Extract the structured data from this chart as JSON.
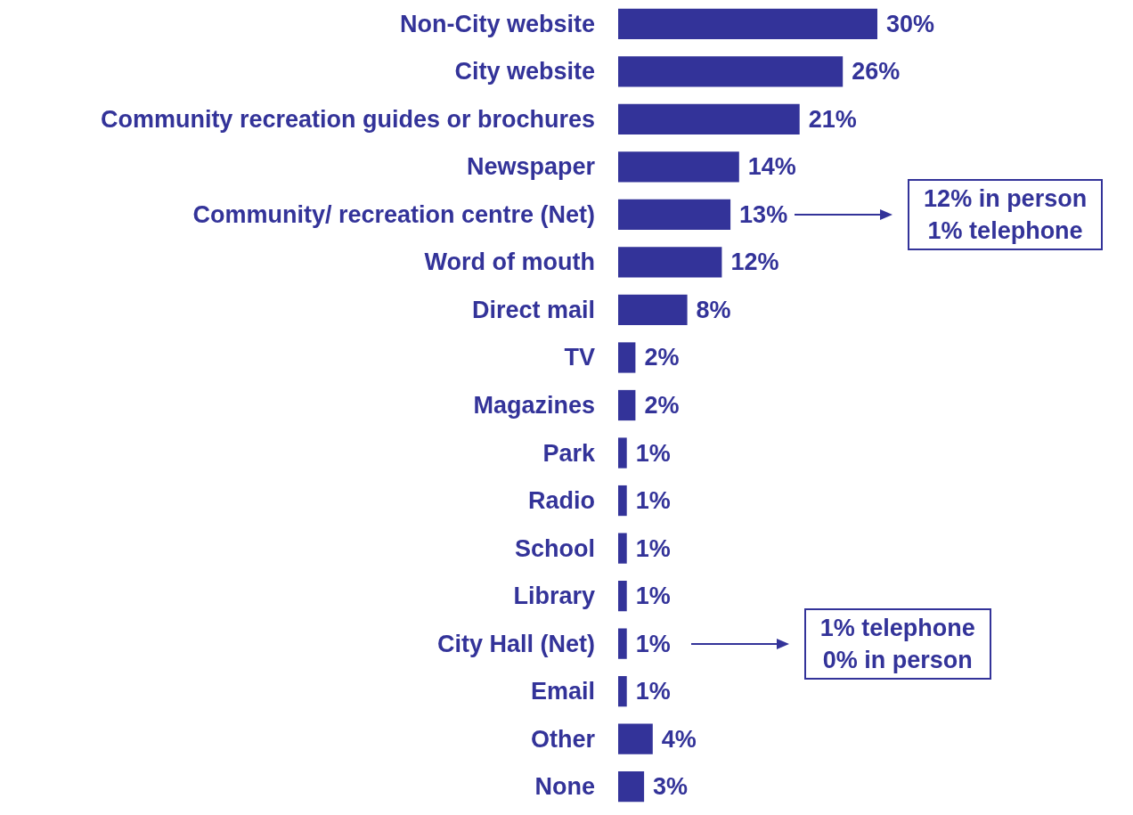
{
  "chart_data": {
    "type": "bar",
    "orientation": "horizontal",
    "data_labels": true,
    "categories": [
      "Non-City website",
      "City website",
      "Community recreation guides or brochures",
      "Newspaper",
      "Community/ recreation centre (Net)",
      "Word of mouth",
      "Direct mail",
      "TV",
      "Magazines",
      "Park",
      "Radio",
      "School",
      "Library",
      "City Hall (Net)",
      "Email",
      "Other",
      "None"
    ],
    "values": [
      30,
      26,
      21,
      14,
      13,
      12,
      8,
      2,
      2,
      1,
      1,
      1,
      1,
      1,
      1,
      4,
      3
    ],
    "value_labels": [
      "30%",
      "26%",
      "21%",
      "14%",
      "13%",
      "12%",
      "8%",
      "2%",
      "2%",
      "1%",
      "1%",
      "1%",
      "1%",
      "1%",
      "1%",
      "4%",
      "3%"
    ],
    "color": "#333399",
    "annotations": [
      "12% in person\n1% telephone",
      "1% telephone\n0% in person"
    ]
  }
}
